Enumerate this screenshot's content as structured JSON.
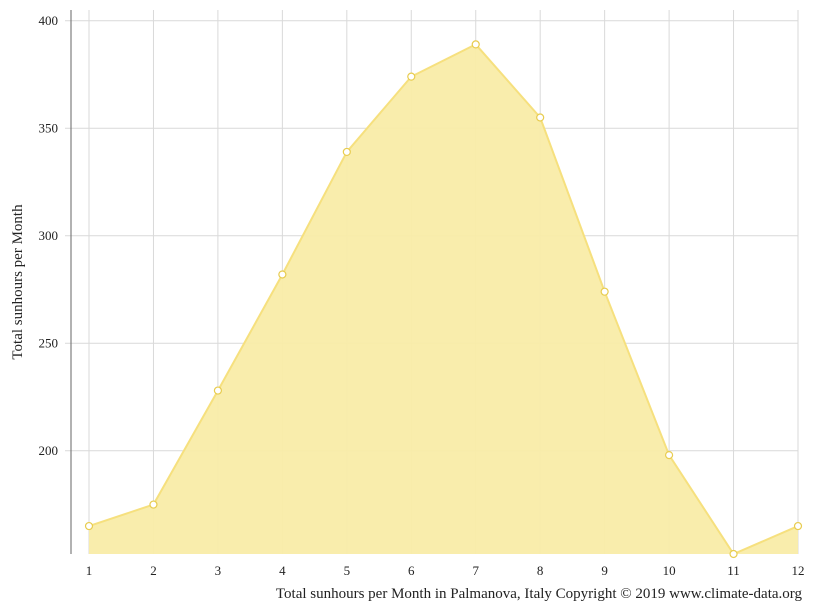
{
  "chart_data": {
    "type": "area",
    "x": [
      1,
      2,
      3,
      4,
      5,
      6,
      7,
      8,
      9,
      10,
      11,
      12
    ],
    "values": [
      165,
      175,
      228,
      282,
      339,
      374,
      389,
      355,
      274,
      198,
      152,
      165
    ],
    "ylabel": "Total sunhours per Month",
    "caption": "Total sunhours per Month in Palmanova, Italy Copyright © 2019 www.climate-data.org",
    "yticks": [
      200,
      250,
      300,
      350,
      400
    ],
    "ylim": [
      152,
      405
    ],
    "grid": true,
    "colors": {
      "fill": "#f9eca8",
      "line": "#f6e07e",
      "marker_fill": "#ffffff",
      "marker_stroke": "#e8cc4f"
    }
  }
}
